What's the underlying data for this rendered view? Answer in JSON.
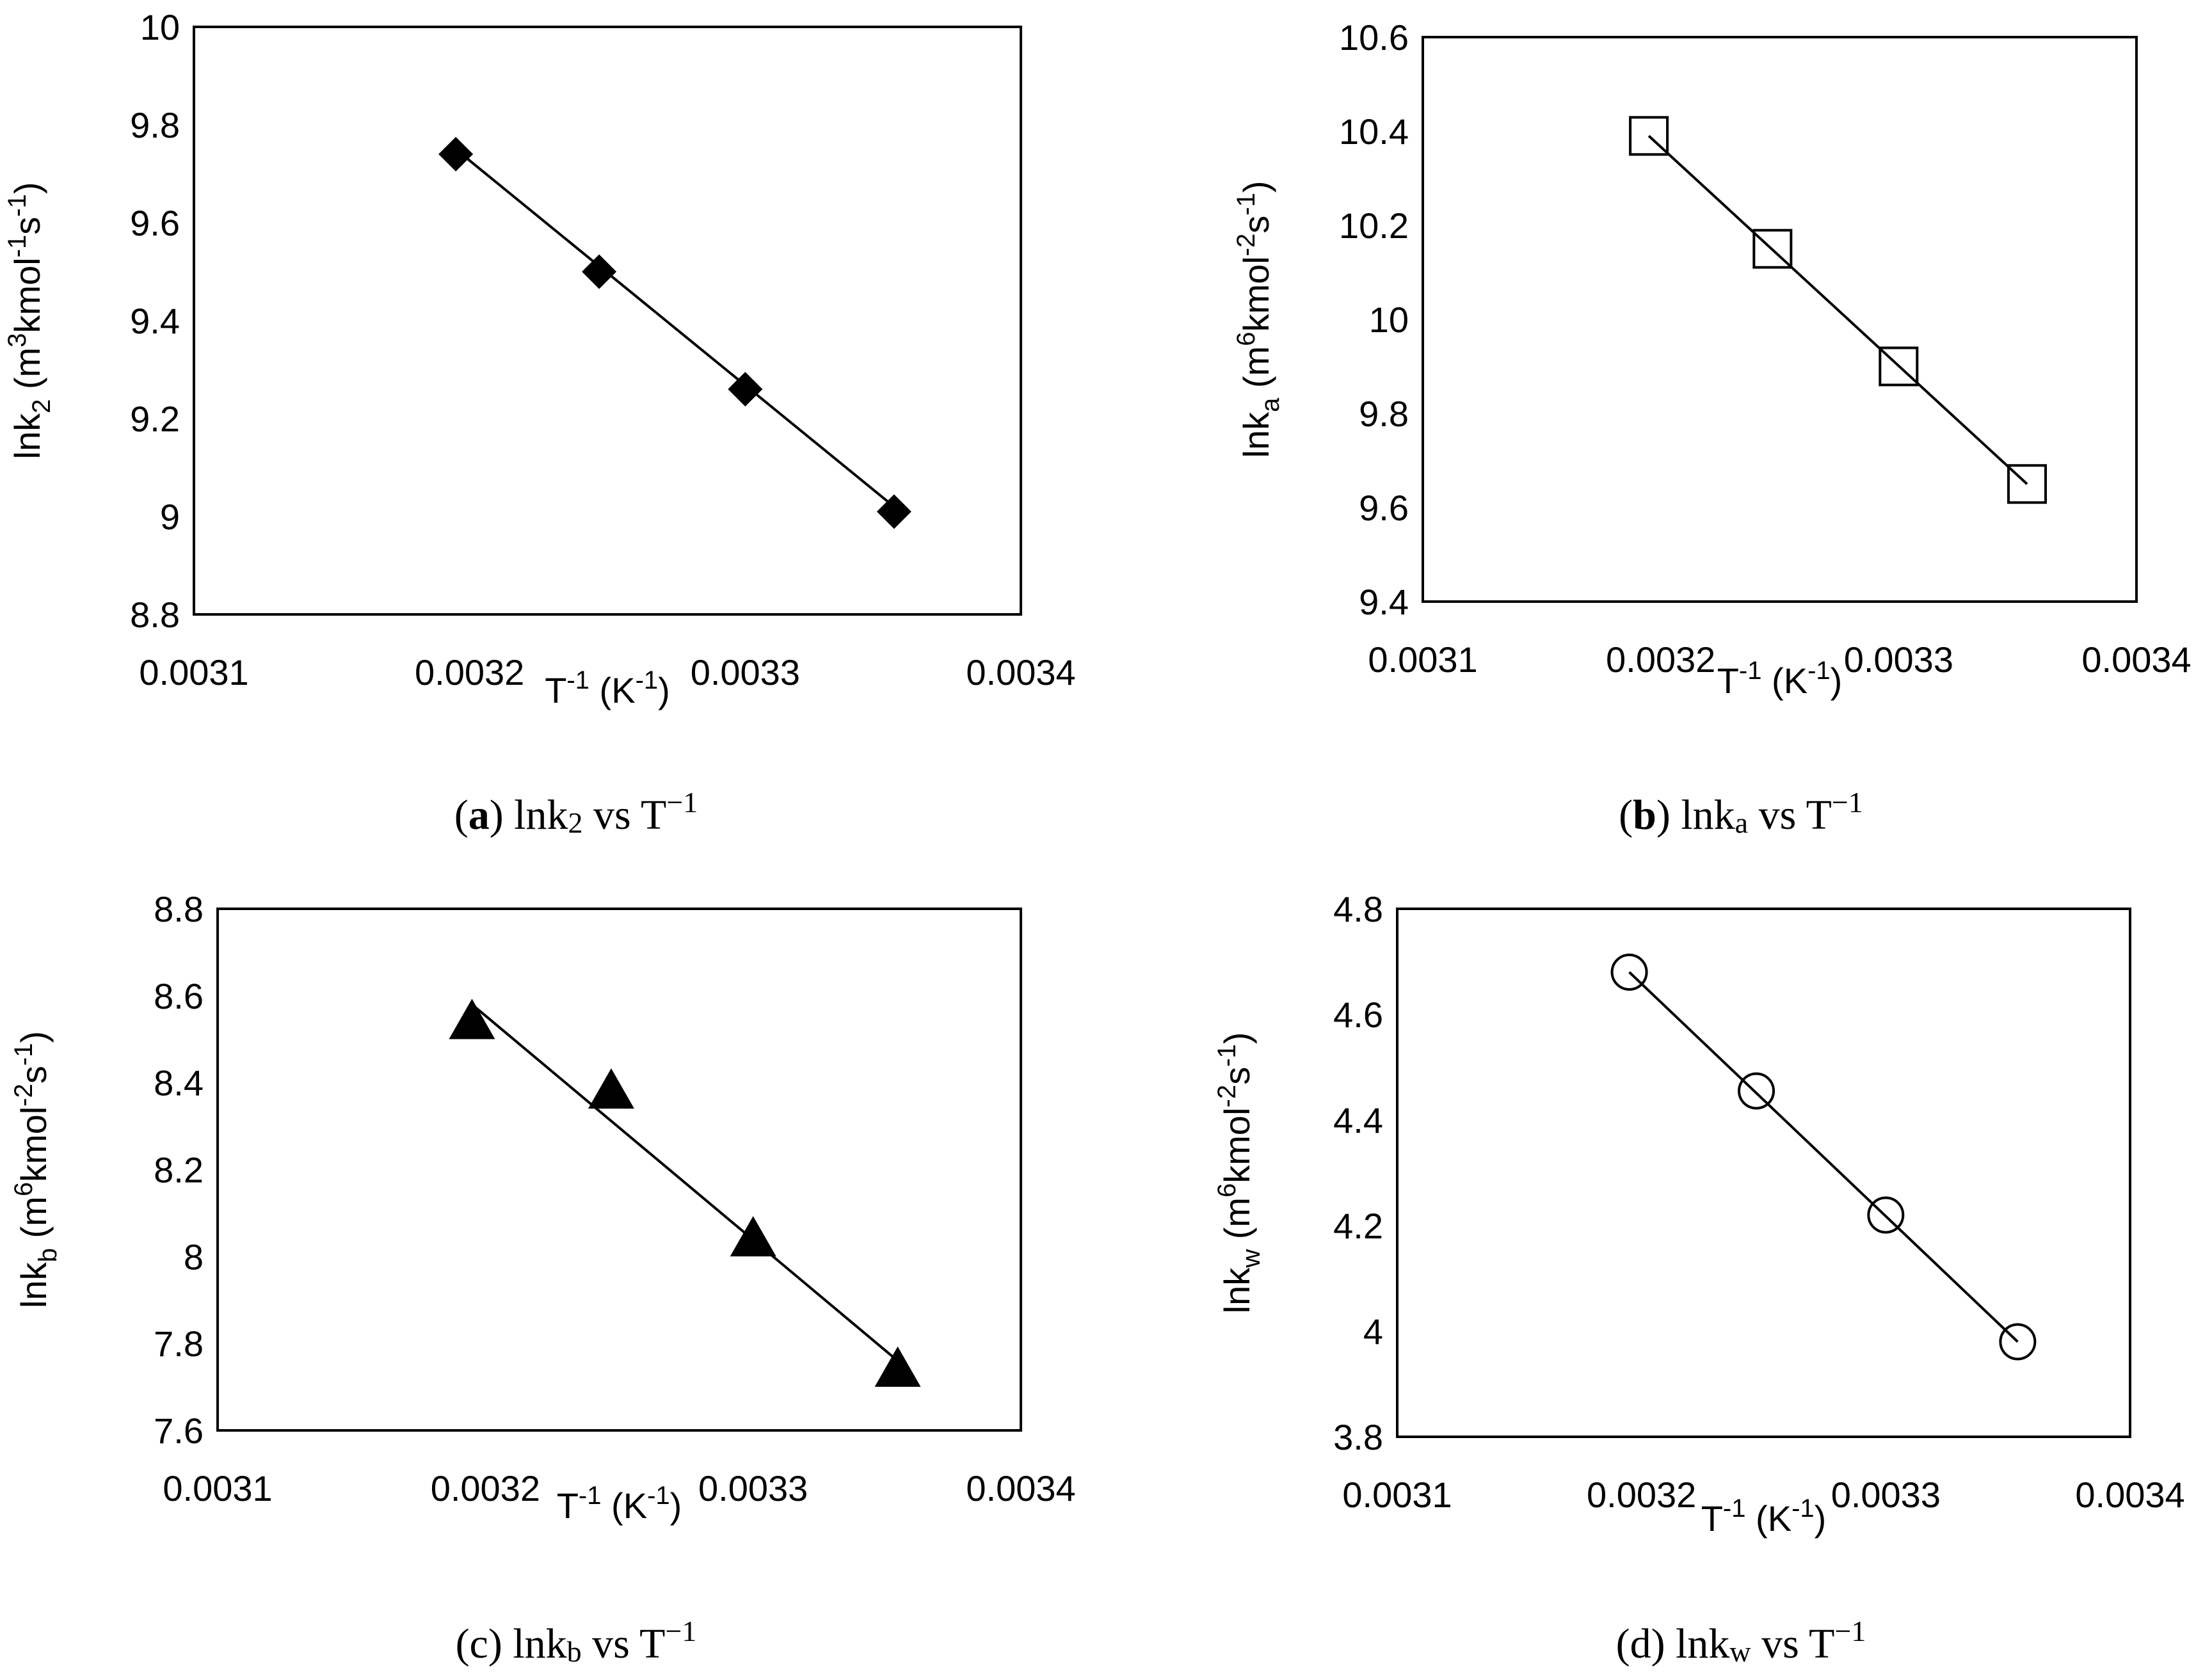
{
  "chart_data": [
    {
      "type": "scatter",
      "panel": "a",
      "marker": "filled-diamond",
      "caption": {
        "letter": "a",
        "quantity": "lnk",
        "sub": "2",
        "rest": "vs T",
        "sup": "−1"
      },
      "ylabel": {
        "main": "lnk",
        "sub": "2",
        "units": "(m",
        "u1": "3",
        "u2": "kmol",
        "u3": "-1",
        "u4": "s",
        "u5": "-1",
        "close": ")"
      },
      "xlabel": {
        "main": "T",
        "sup": "-1",
        "units": " (K",
        "usup": "-1",
        "close": ")"
      },
      "xlim": [
        0.0031,
        0.0034
      ],
      "ylim": [
        8.8,
        10
      ],
      "xticks": [
        "0.0031",
        "0.0032",
        "0.0033",
        "0.0034"
      ],
      "yticks": [
        "8.8",
        "9",
        "9.2",
        "9.4",
        "9.6",
        "9.8",
        "10"
      ],
      "x": [
        0.003195,
        0.003247,
        0.0033,
        0.003354
      ],
      "y": [
        9.74,
        9.5,
        9.26,
        9.01
      ],
      "fit": {
        "x": [
          0.003195,
          0.003354
        ],
        "y": [
          9.75,
          9.02
        ]
      }
    },
    {
      "type": "scatter",
      "panel": "b",
      "marker": "open-square",
      "caption": {
        "letter": "b",
        "quantity": "lnk",
        "sub": "a",
        "rest": "vs T",
        "sup": "−1"
      },
      "ylabel": {
        "main": "lnk",
        "sub": "a",
        "units": "(m",
        "u1": "6",
        "u2": "kmol",
        "u3": "-2",
        "u4": "s",
        "u5": "-1",
        "close": ")"
      },
      "xlabel": {
        "main": "T",
        "sup": "-1",
        "units": " (K",
        "usup": "-1",
        "close": ")"
      },
      "xlim": [
        0.0031,
        0.0034
      ],
      "ylim": [
        9.4,
        10.6
      ],
      "xticks": [
        "0.0031",
        "0.0032",
        "0.0033",
        "0.0034"
      ],
      "yticks": [
        "9.4",
        "9.6",
        "9.8",
        "10",
        "10.2",
        "10.4",
        "10.6"
      ],
      "x": [
        0.003195,
        0.003247,
        0.0033,
        0.003354
      ],
      "y": [
        10.39,
        10.15,
        9.9,
        9.65
      ],
      "fit": {
        "x": [
          0.003195,
          0.003354
        ],
        "y": [
          10.39,
          9.65
        ]
      }
    },
    {
      "type": "scatter",
      "panel": "c",
      "marker": "filled-triangle",
      "caption": {
        "letter": "c",
        "quantity": "lnk",
        "sub": "b",
        "rest": "vs T",
        "sup": "−1"
      },
      "ylabel": {
        "main": "lnk",
        "sub": "b",
        "units": "(m",
        "u1": "6",
        "u2": "kmol",
        "u3": "-2",
        "u4": "s",
        "u5": "-1",
        "close": ")"
      },
      "xlabel": {
        "main": "T",
        "sup": "-1",
        "units": " (K",
        "usup": "-1",
        "close": ")"
      },
      "xlim": [
        0.0031,
        0.0034
      ],
      "ylim": [
        7.6,
        8.8
      ],
      "xticks": [
        "0.0031",
        "0.0032",
        "0.0033",
        "0.0034"
      ],
      "yticks": [
        "7.6",
        "7.8",
        "8",
        "8.2",
        "8.4",
        "8.6",
        "8.8"
      ],
      "x": [
        0.003195,
        0.003247,
        0.0033,
        0.003354
      ],
      "y": [
        8.54,
        8.38,
        8.04,
        7.74
      ],
      "fit": {
        "x": [
          0.003195,
          0.003354
        ],
        "y": [
          8.58,
          7.76
        ]
      }
    },
    {
      "type": "scatter",
      "panel": "d",
      "marker": "open-circle",
      "caption": {
        "letter": "d",
        "quantity": "lnk",
        "sub": "w",
        "rest": "vs T",
        "sup": "−1"
      },
      "ylabel": {
        "main": "lnk",
        "sub": "w",
        "units": "(m",
        "u1": "6",
        "u2": "kmol",
        "u3": "-2",
        "u4": "s",
        "u5": "-1",
        "close": ")"
      },
      "xlabel": {
        "main": "T",
        "sup": "-1",
        "units": " (K",
        "usup": "-1",
        "close": ")"
      },
      "xlim": [
        0.0031,
        0.0034
      ],
      "ylim": [
        3.8,
        4.8
      ],
      "xticks": [
        "0.0031",
        "0.0032",
        "0.0033",
        "0.0034"
      ],
      "yticks": [
        "3.8",
        "4",
        "4.2",
        "4.4",
        "4.6",
        "4.8"
      ],
      "x": [
        0.003195,
        0.003247,
        0.0033,
        0.003354
      ],
      "y": [
        4.68,
        4.455,
        4.22,
        3.98
      ],
      "fit": {
        "x": [
          0.003195,
          0.003354
        ],
        "y": [
          4.68,
          3.98
        ]
      }
    }
  ]
}
